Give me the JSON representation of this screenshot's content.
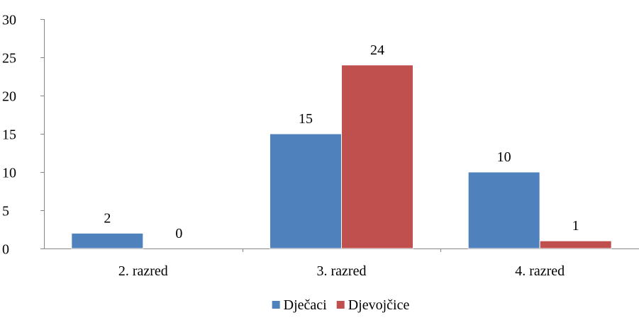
{
  "chart_data": {
    "type": "bar",
    "categories": [
      "2. razred",
      "3. razred",
      "4. razred"
    ],
    "series": [
      {
        "name": "Dječaci",
        "values": [
          2,
          15,
          10
        ],
        "color": "#4F81BD"
      },
      {
        "name": "Djevojčice",
        "values": [
          0,
          24,
          1
        ],
        "color": "#C0504D"
      }
    ],
    "ylim": [
      0,
      30
    ],
    "yticks": [
      0,
      5,
      10,
      15,
      20,
      25,
      30
    ],
    "grid": false,
    "legend_position": "bottom",
    "data_labels": true
  }
}
